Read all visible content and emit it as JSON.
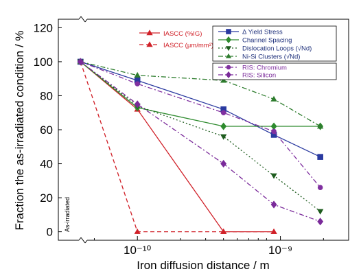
{
  "chart_data": {
    "type": "line",
    "xlabel": "Iron diffusion distance / m",
    "ylabel": "Fraction the as-irradiated condition / %",
    "x_scale": "log",
    "x_ticks": [
      {
        "value": 1e-10,
        "label": "10⁻¹⁰"
      },
      {
        "value": 1e-09,
        "label": "10⁻⁹"
      }
    ],
    "y_ticks": [
      0,
      20,
      40,
      60,
      80,
      100,
      120
    ],
    "ylim": [
      -5,
      125
    ],
    "grid": false,
    "annotation": "As-irradiated",
    "legend_placement": "top-right",
    "series": [
      {
        "name": "IASCC (%IG)",
        "color": "#d02028",
        "marker": "tri-up",
        "dash": "solid",
        "points": [
          [
            4e-11,
            100
          ],
          [
            1e-10,
            72
          ],
          [
            4e-10,
            0
          ],
          [
            9e-10,
            0
          ]
        ]
      },
      {
        "name": "IASCC (μm/mm²)",
        "color": "#d02028",
        "marker": "tri-up",
        "dash": "dashed",
        "points": [
          [
            4e-11,
            100
          ],
          [
            1e-10,
            0
          ],
          [
            4e-10,
            0
          ],
          [
            9e-10,
            0
          ]
        ]
      },
      {
        "name": "Δ Yield Stress",
        "color": "#2a3aa0",
        "marker": "square",
        "dash": "solid",
        "points": [
          [
            4e-11,
            100
          ],
          [
            1e-10,
            89
          ],
          [
            4e-10,
            72
          ],
          [
            9e-10,
            57
          ],
          [
            1.9e-09,
            44
          ]
        ]
      },
      {
        "name": "Channel Spacing",
        "color": "#2e8b2e",
        "marker": "diamond",
        "dash": "solid",
        "points": [
          [
            4e-11,
            100
          ],
          [
            1e-10,
            73
          ],
          [
            4e-10,
            62
          ],
          [
            9e-10,
            62
          ],
          [
            1.9e-09,
            62
          ]
        ]
      },
      {
        "name": "Dislocation Loops (√Nd)",
        "color": "#1e5c1e",
        "marker": "tri-down",
        "dash": "dotted",
        "points": [
          [
            4e-11,
            100
          ],
          [
            1e-10,
            74
          ],
          [
            4e-10,
            56
          ],
          [
            9e-10,
            33
          ],
          [
            1.9e-09,
            12
          ]
        ]
      },
      {
        "name": "Ni-Si Clusters (√Nd)",
        "color": "#2e7d2e",
        "marker": "tri-up",
        "dash": "dashdot",
        "points": [
          [
            4e-11,
            100
          ],
          [
            1e-10,
            92
          ],
          [
            4e-10,
            89
          ],
          [
            9e-10,
            78
          ],
          [
            1.9e-09,
            62
          ]
        ]
      },
      {
        "name": "RIS: Chromium",
        "color": "#8030a0",
        "marker": "circle",
        "dash": "dashdot",
        "points": [
          [
            4e-11,
            100
          ],
          [
            1e-10,
            87
          ],
          [
            4e-10,
            70
          ],
          [
            9e-10,
            59
          ],
          [
            1.9e-09,
            26
          ]
        ]
      },
      {
        "name": "RIS: Silicon",
        "color": "#7a2a9a",
        "marker": "diamond",
        "dash": "dashdot",
        "points": [
          [
            4e-11,
            100
          ],
          [
            1e-10,
            75
          ],
          [
            4e-10,
            40
          ],
          [
            9e-10,
            16
          ],
          [
            1.9e-09,
            6
          ]
        ]
      }
    ]
  }
}
